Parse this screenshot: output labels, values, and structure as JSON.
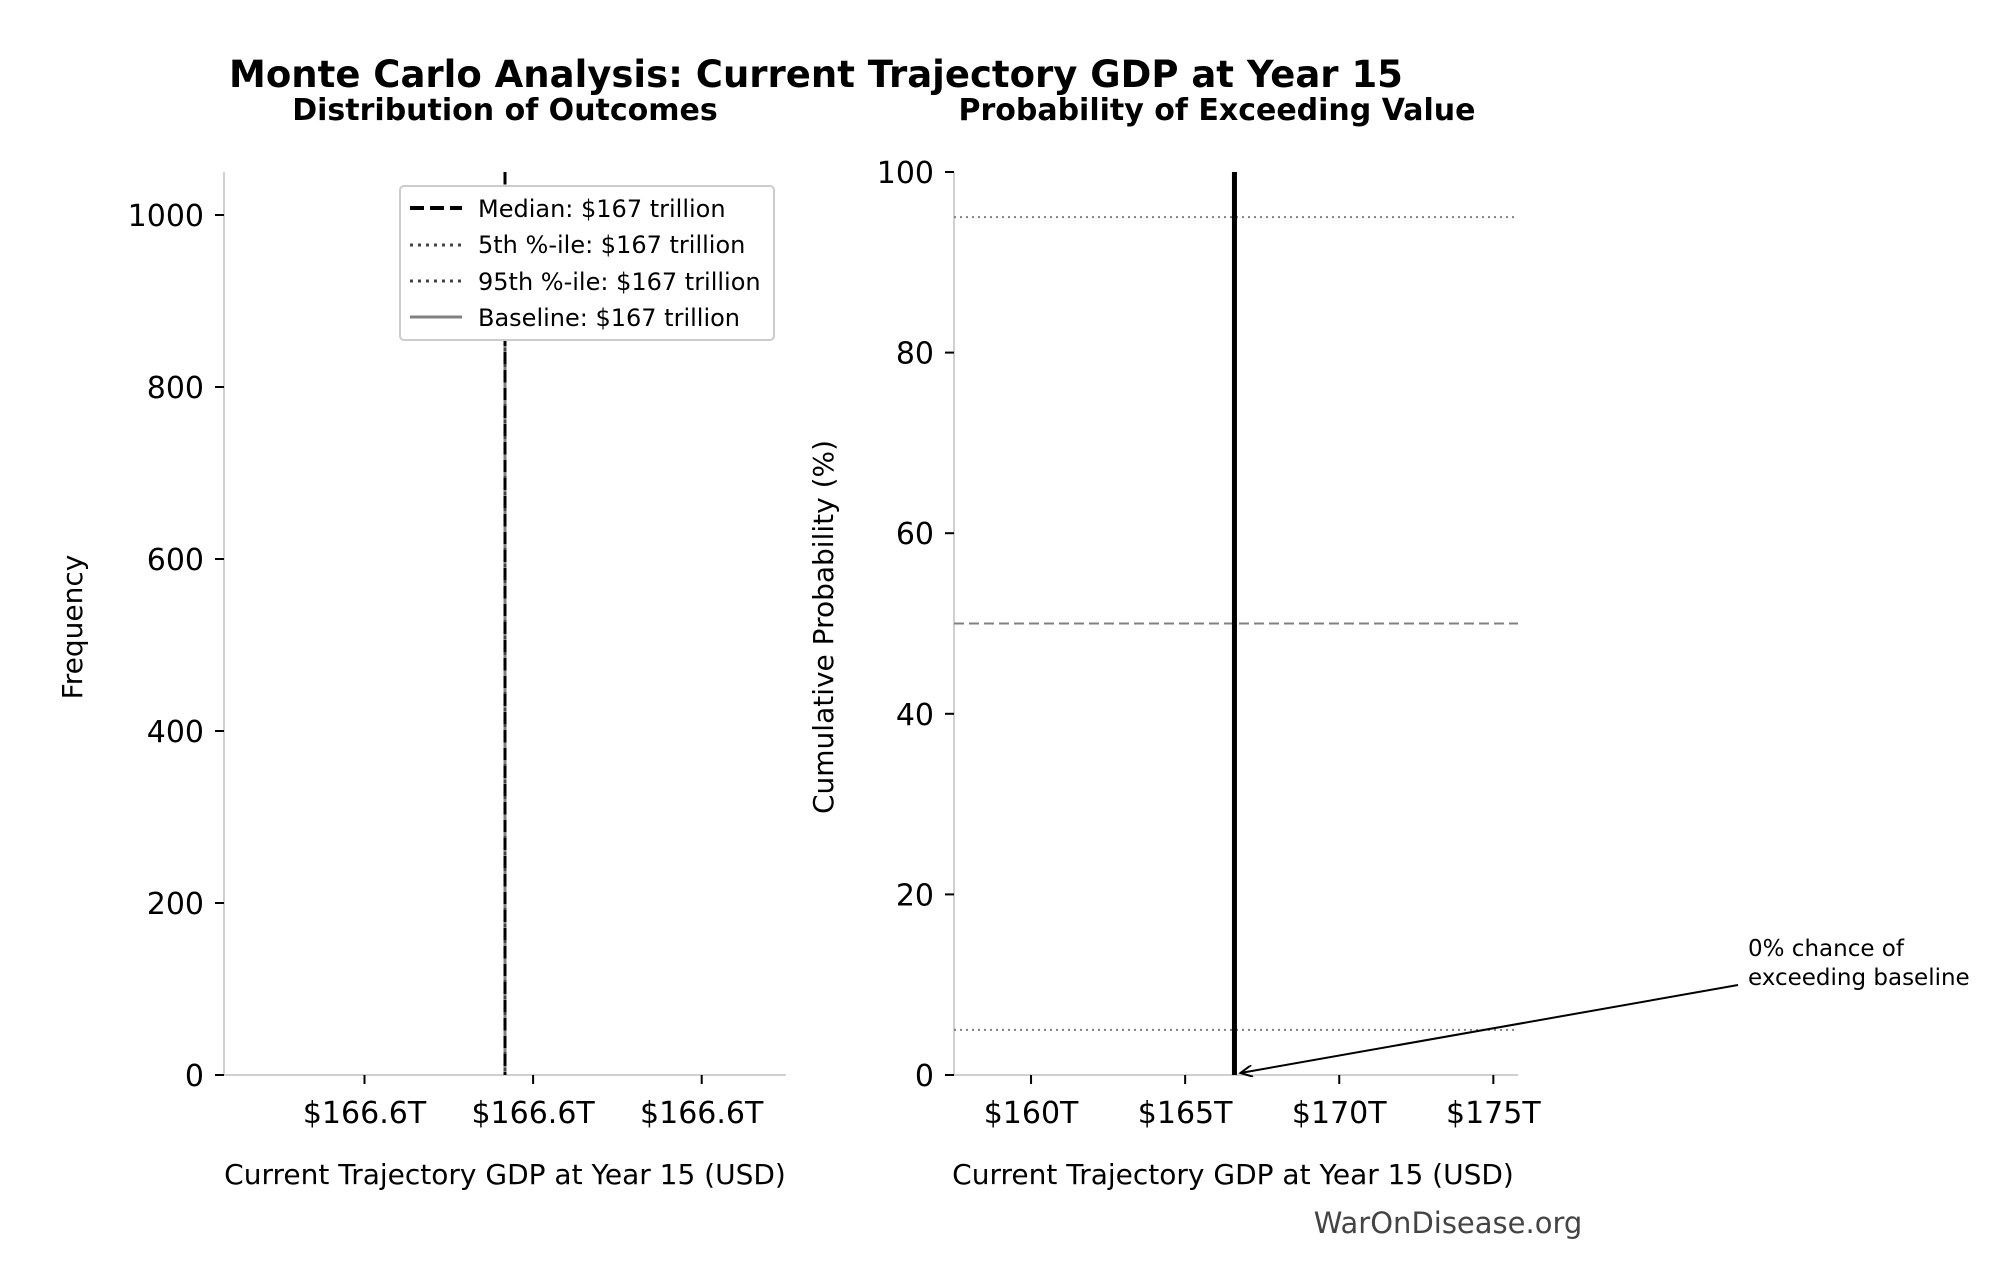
{
  "figure": {
    "suptitle": "Monte Carlo Analysis: Current Trajectory GDP at Year 15",
    "watermark": "WarOnDisease.org"
  },
  "chart_data": [
    {
      "type": "bar",
      "title": "Distribution of Outcomes",
      "xlabel": "Current Trajectory GDP at Year 15 (USD)",
      "ylabel": "Frequency",
      "ylim": [
        0,
        1050
      ],
      "yticks": [
        0,
        200,
        400,
        600,
        800,
        1000
      ],
      "xtick_labels": [
        "$166.6T",
        "$166.6T",
        "$166.6T"
      ],
      "histogram": {
        "bins": [
          {
            "x": "$166.6T",
            "count": 1050
          }
        ]
      },
      "vlines": [
        {
          "name": "Median: $167 trillion",
          "style": "dashed",
          "color": "#000000"
        },
        {
          "name": "5th %-ile: $167 trillion",
          "style": "dotted",
          "color": "#444444"
        },
        {
          "name": "95th %-ile: $167 trillion",
          "style": "dotted",
          "color": "#444444"
        },
        {
          "name": "Baseline: $167 trillion",
          "style": "solid",
          "color": "#808080"
        }
      ],
      "legend_position": "top-right",
      "grid": false
    },
    {
      "type": "line",
      "title": "Probability of Exceeding Value",
      "xlabel": "Current Trajectory GDP at Year 15 (USD)",
      "ylabel": "Cumulative Probability (%)",
      "xlim": [
        157.5,
        175.8
      ],
      "ylim": [
        0,
        100
      ],
      "xticks": [
        160,
        165,
        170,
        175
      ],
      "xtick_labels": [
        "$160T",
        "$165T",
        "$170T",
        "$175T"
      ],
      "yticks": [
        0,
        20,
        40,
        60,
        80,
        100
      ],
      "series": [
        {
          "x": [
            166.6,
            166.6
          ],
          "y": [
            0,
            100
          ],
          "color": "#000000"
        }
      ],
      "hlines": [
        {
          "y": 95,
          "style": "dotted",
          "color": "#808080"
        },
        {
          "y": 50,
          "style": "dashed",
          "color": "#808080"
        },
        {
          "y": 5,
          "style": "dotted",
          "color": "#808080"
        }
      ],
      "annotation": {
        "text_lines": [
          "0% chance of",
          "exceeding baseline"
        ],
        "target_x": 166.6,
        "target_y": 0
      },
      "grid": false
    }
  ]
}
